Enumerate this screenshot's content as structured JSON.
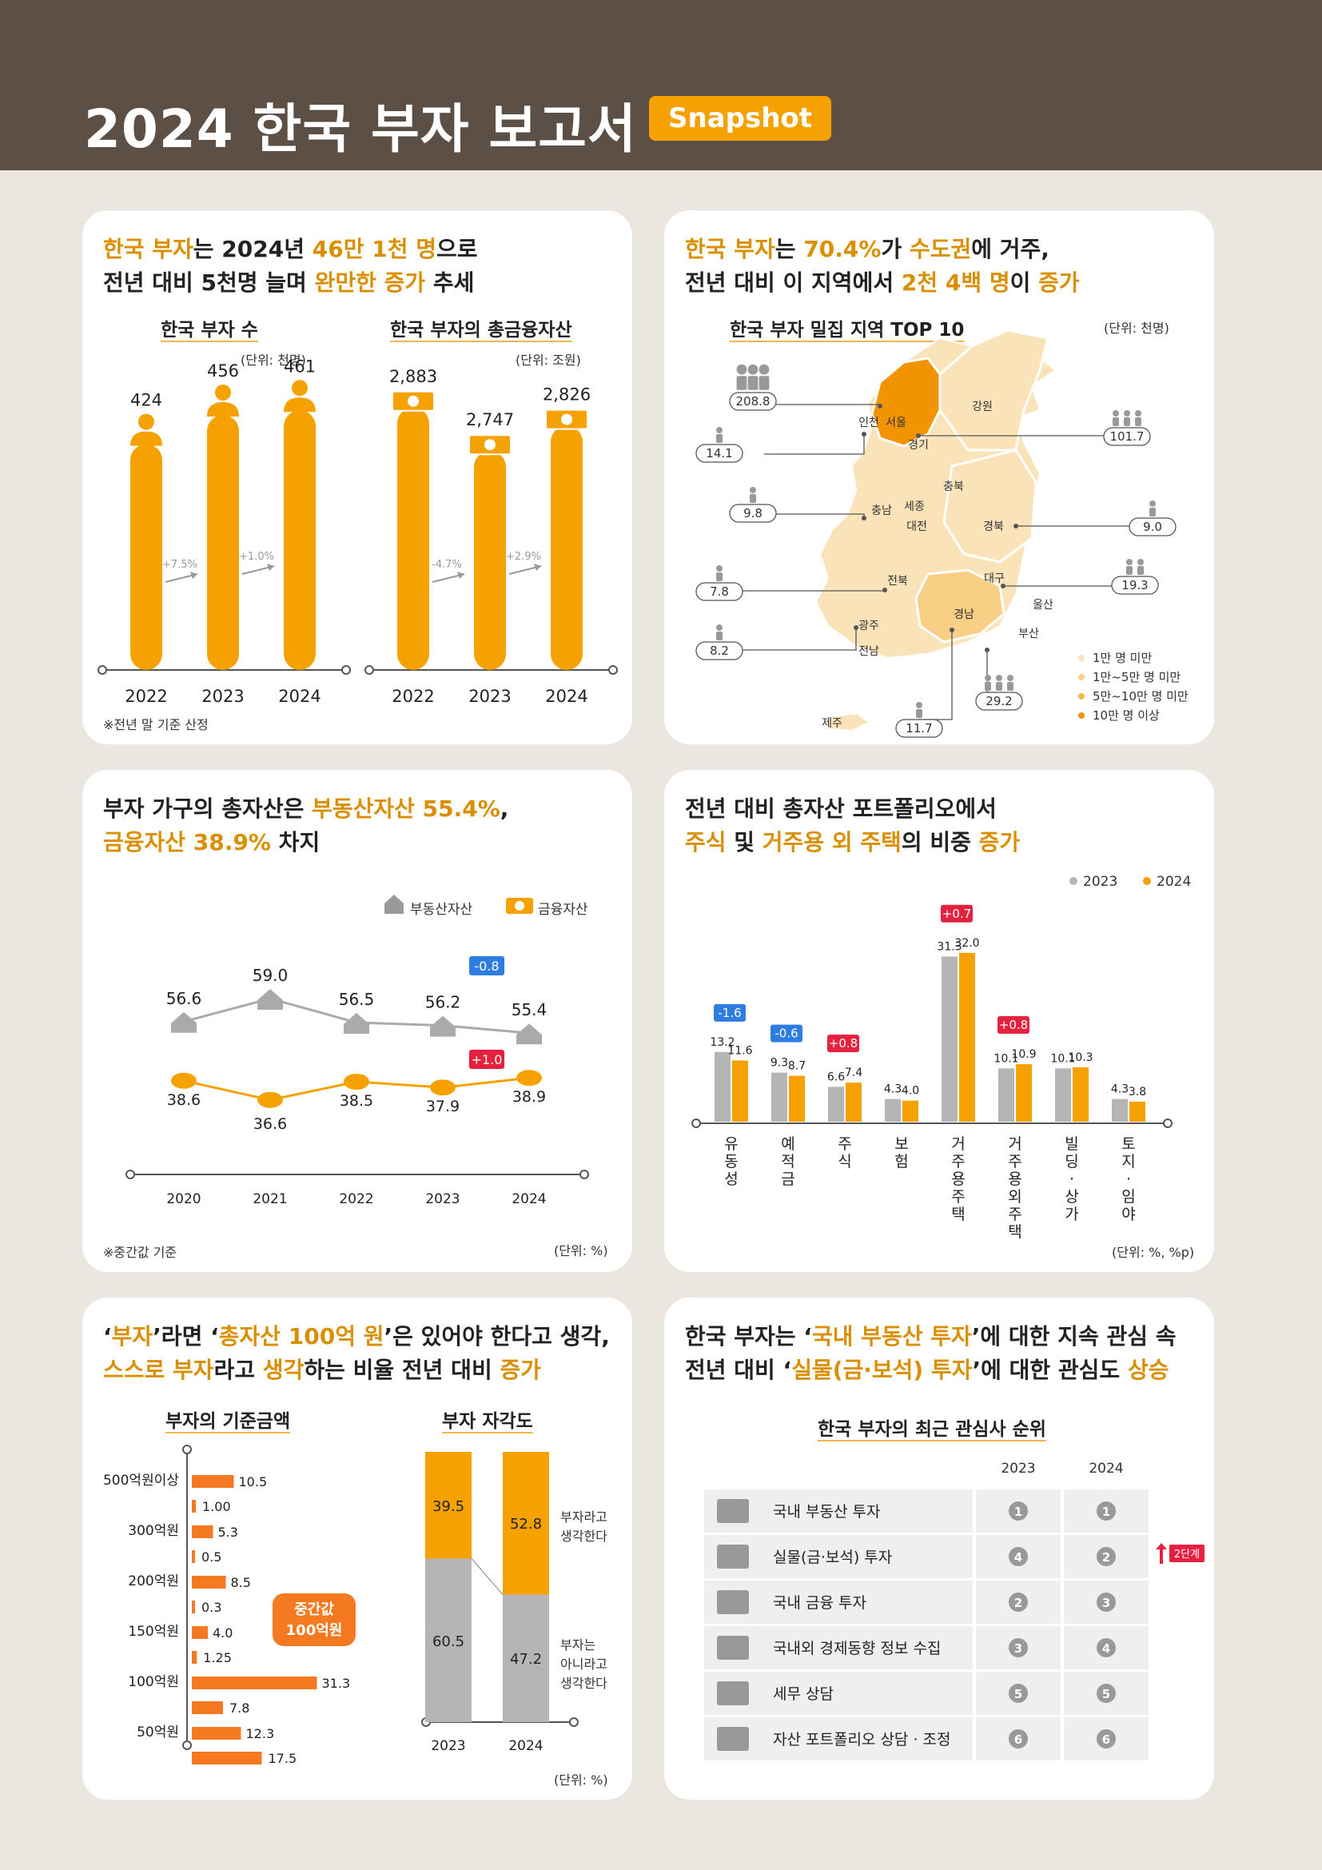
{
  "header": {
    "title": "2024 한국 부자 보고서",
    "badge": "Snapshot"
  },
  "p1": {
    "line1": {
      "a": "한국 부자",
      "b": "는 2024년 ",
      "c": "46만 1천 명",
      "d": "으로"
    },
    "line2": {
      "a": "전년 대비 5천명 늘며 ",
      "b": "완만한 증가",
      "c": " 추세"
    },
    "left": {
      "title": "한국 부자 수",
      "unit": "(단위: 천명)",
      "chart_data": {
        "type": "bar",
        "categories": [
          "2022",
          "2023",
          "2024"
        ],
        "values": [
          424,
          456,
          461
        ],
        "changes": [
          "+7.5%",
          "+1.0%"
        ]
      }
    },
    "right": {
      "title": "한국 부자의 총금융자산",
      "unit": "(단위: 조원)",
      "chart_data": {
        "type": "bar",
        "categories": [
          "2022",
          "2023",
          "2024"
        ],
        "values": [
          2883,
          2747,
          2826
        ],
        "labels": [
          "2,883",
          "2,747",
          "2,826"
        ],
        "changes": [
          "-4.7%",
          "+2.9%"
        ]
      }
    },
    "note": "※전년 말 기준 산정"
  },
  "p2": {
    "line1": {
      "a": "한국 부자",
      "b": "는 ",
      "c": "70.4%",
      "d": "가 ",
      "e": "수도권",
      "f": "에 거주,"
    },
    "line2": {
      "a": "전년 대비 이 지역에서 ",
      "b": "2천 4백 명",
      "c": "이 ",
      "d": "증가"
    },
    "title": "한국 부자 밀집 지역 TOP 10",
    "unit": "(단위: 천명)",
    "regions": {
      "incheon": "인천",
      "seoul": "서울",
      "gyeonggi": "경기",
      "gangwon": "강원",
      "chungbuk": "충북",
      "chungnam": "충남",
      "sejong": "세종",
      "daejeon": "대전",
      "gyeongbuk": "경북",
      "jeonbuk": "전북",
      "daegu": "대구",
      "ulsan": "울산",
      "gyeongnam": "경남",
      "gwangju": "광주",
      "jeonnam": "전남",
      "busan": "부산",
      "jeju": "제주"
    },
    "values": {
      "seoul": "208.8",
      "incheon": "14.1",
      "gyeonggi": "101.7",
      "chungnam": "9.8",
      "gyeongbuk": "9.0",
      "jeonbuk": "7.8",
      "daegu": "19.3",
      "gwangju": "8.2",
      "busan": "29.2",
      "gyeongnam": "11.7"
    },
    "legend": [
      "1만 명 미만",
      "1만~5만 명 미만",
      "5만~10만 명 미만",
      "10만 명 이상"
    ],
    "legend_colors": [
      "#fbe3b9",
      "#f8cf85",
      "#f6b74d",
      "#f29400"
    ]
  },
  "p3": {
    "line1": {
      "a": "부자 가구의 총자산은 ",
      "b": "부동산자산 55.4%",
      "c": ","
    },
    "line2": {
      "a": "금융자산 38.9%",
      "b": " 차지"
    },
    "legend": {
      "re": "부동산자산",
      "fin": "금융자산"
    },
    "chart_data": {
      "type": "line",
      "x": [
        "2020",
        "2021",
        "2022",
        "2023",
        "2024"
      ],
      "series": [
        {
          "name": "부동산자산",
          "values": [
            56.6,
            59.0,
            56.5,
            56.2,
            55.4
          ]
        },
        {
          "name": "금융자산",
          "values": [
            38.6,
            36.6,
            38.5,
            37.9,
            38.9
          ]
        }
      ],
      "labels_re": [
        "56.6",
        "59.0",
        "56.5",
        "56.2",
        "55.4"
      ],
      "labels_fin": [
        "38.6",
        "36.6",
        "38.5",
        "37.9",
        "38.9"
      ],
      "badge_re": "-0.8",
      "badge_fin": "+1.0"
    },
    "note": "※중간값 기준",
    "unit": "(단위: %)"
  },
  "p4": {
    "line1": "전년 대비 총자산 포트폴리오에서",
    "line2": {
      "a": "주식",
      "b": " 및 ",
      "c": "거주용 외 주택",
      "d": "의 비중 ",
      "e": "증가"
    },
    "legend": [
      "2023",
      "2024"
    ],
    "chart_data": {
      "type": "bar",
      "categories": [
        "유동성",
        "예적금",
        "주식",
        "보험",
        "거주용주택",
        "거주용외주택",
        "빌딩·상가",
        "토지·임야"
      ],
      "series": [
        {
          "name": "2023",
          "values": [
            13.2,
            9.3,
            6.6,
            4.3,
            31.3,
            10.1,
            10.1,
            4.3
          ]
        },
        {
          "name": "2024",
          "values": [
            11.6,
            8.7,
            7.4,
            4.0,
            32.0,
            10.9,
            10.3,
            3.8
          ]
        }
      ],
      "labels_2023": [
        "13.2",
        "9.3",
        "6.6",
        "4.3",
        "31.3",
        "10.1",
        "10.1",
        "4.3"
      ],
      "labels_2024": [
        "11.6",
        "8.7",
        "7.4",
        "4.0",
        "32.0",
        "10.9",
        "10.3",
        "3.8"
      ],
      "badges": [
        "-1.6",
        "-0.6",
        "+0.8",
        "",
        "+0.7",
        "+0.8",
        "",
        ""
      ]
    },
    "unit": "(단위: %, %p)"
  },
  "p5": {
    "line1": {
      "a": "‘",
      "b": "부자",
      "c": "’라면 ‘",
      "d": "총자산 100억 원",
      "e": "’은 있어야 한다고 생각,"
    },
    "line2": {
      "a": "스스로 부자",
      "b": "라고 ",
      "c": "생각",
      "d": "하는 비율 전년 대비 ",
      "e": "증가"
    },
    "left": {
      "title": "부자의 기준금액",
      "chart_data": {
        "type": "bar",
        "categories": [
          "500억원이상",
          "300억원",
          "200억원",
          "150억원",
          "100억원",
          "50억원"
        ],
        "series": [
          {
            "name": "2023",
            "values": [
              10.5,
              5.3,
              8.5,
              4.0,
              31.3,
              12.3
            ]
          },
          {
            "name": "2024",
            "values": [
              1.0,
              0.5,
              0.3,
              1.25,
              7.8,
              17.5
            ]
          }
        ],
        "labels_a": [
          "10.5",
          "5.3",
          "8.5",
          "4.0",
          "31.3",
          "12.3"
        ],
        "labels_b": [
          "1.00",
          "0.5",
          "0.3",
          "1.25",
          "7.8",
          "17.5"
        ]
      },
      "callout": [
        "중간값",
        "100억원"
      ]
    },
    "right": {
      "title": "부자 자각도",
      "chart_data": {
        "type": "bar",
        "categories": [
          "2023",
          "2024"
        ],
        "series": [
          {
            "name": "부자라고 생각한다",
            "values": [
              39.5,
              52.8
            ]
          },
          {
            "name": "부자는 아니라고 생각한다",
            "values": [
              60.5,
              47.2
            ]
          }
        ]
      },
      "yes": [
        "부자라고",
        "생각한다"
      ],
      "no": [
        "부자는",
        "아니라고",
        "생각한다"
      ]
    },
    "unit": "(단위: %)"
  },
  "p6": {
    "line1": {
      "a": "한국 부자는 ‘",
      "b": "국내 부동산 투자",
      "c": "’에 대한 지속 관심 속"
    },
    "line2": {
      "a": "전년 대비 ‘",
      "b": "실물(금·보석) 투자",
      "c": "’에 대한 관심도 ",
      "d": "상승"
    },
    "title": "한국 부자의 최근 관심사 순위",
    "years": [
      "2023",
      "2024"
    ],
    "rows": [
      {
        "label": "국내 부동산 투자",
        "r2023": "1",
        "r2024": "1",
        "icon": "building-icon"
      },
      {
        "label": "실물(금·보석) 투자",
        "r2023": "4",
        "r2024": "2",
        "icon": "gold-icon"
      },
      {
        "label": "국내 금융 투자",
        "r2023": "2",
        "r2024": "3",
        "icon": "money-icon"
      },
      {
        "label": "국내외 경제동향 정보 수집",
        "r2023": "3",
        "r2024": "4",
        "icon": "document-icon"
      },
      {
        "label": "세무 상담",
        "r2023": "5",
        "r2024": "5",
        "icon": "calculator-icon"
      },
      {
        "label": "자산 포트폴리오 상담 · 조정",
        "r2023": "6",
        "r2024": "6",
        "icon": "consultant-icon"
      }
    ],
    "up_badge": "2단계"
  }
}
